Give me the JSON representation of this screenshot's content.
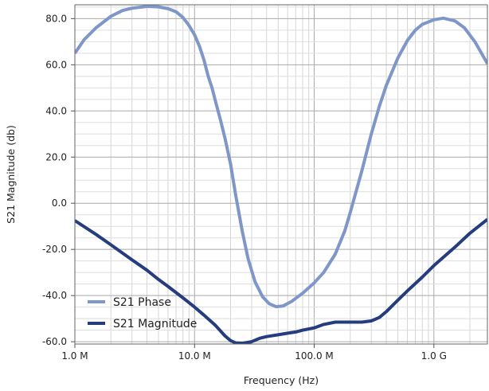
{
  "chart_data": {
    "type": "line",
    "title": "",
    "xlabel": "Frequency (Hz)",
    "ylabel": "S21 Magnitude (db)",
    "x_scale": "log",
    "xlim": [
      1000000,
      2800000000
    ],
    "ylim": [
      -61,
      86
    ],
    "grid": true,
    "legend_position": "bottom-left",
    "x_ticks": [
      {
        "value": 1000000,
        "label": "1.0 M"
      },
      {
        "value": 10000000,
        "label": "10.0 M"
      },
      {
        "value": 100000000,
        "label": "100.0 M"
      },
      {
        "value": 1000000000,
        "label": "1.0 G"
      }
    ],
    "y_ticks": [
      {
        "value": 80,
        "label": "80.0"
      },
      {
        "value": 60,
        "label": "60.0"
      },
      {
        "value": 40,
        "label": "40.0"
      },
      {
        "value": 20,
        "label": "20.0"
      },
      {
        "value": 0,
        "label": "0.0"
      },
      {
        "value": -20,
        "label": "-20.0"
      },
      {
        "value": -40,
        "label": "-40.0"
      },
      {
        "value": -60,
        "label": "-60.0"
      }
    ],
    "series": [
      {
        "name": "S21 Phase",
        "color": "#7f97c8",
        "points": [
          [
            1000000,
            65
          ],
          [
            1200000,
            71
          ],
          [
            1500000,
            76
          ],
          [
            2000000,
            81
          ],
          [
            2500000,
            83.5
          ],
          [
            3000000,
            84.5
          ],
          [
            4000000,
            85.3
          ],
          [
            5000000,
            85.1
          ],
          [
            6000000,
            84.3
          ],
          [
            7000000,
            83
          ],
          [
            8000000,
            80.5
          ],
          [
            9000000,
            77
          ],
          [
            10000000,
            73
          ],
          [
            11000000,
            68
          ],
          [
            12000000,
            62
          ],
          [
            13000000,
            55
          ],
          [
            14000000,
            50
          ],
          [
            15000000,
            44
          ],
          [
            16500000,
            36
          ],
          [
            18000000,
            28
          ],
          [
            20000000,
            17
          ],
          [
            22000000,
            4
          ],
          [
            25000000,
            -12
          ],
          [
            28000000,
            -24
          ],
          [
            32000000,
            -34
          ],
          [
            37000000,
            -40.5
          ],
          [
            42000000,
            -43.5
          ],
          [
            48000000,
            -44.8
          ],
          [
            55000000,
            -44.5
          ],
          [
            65000000,
            -42.5
          ],
          [
            80000000,
            -39
          ],
          [
            100000000,
            -34.5
          ],
          [
            120000000,
            -30
          ],
          [
            150000000,
            -22
          ],
          [
            180000000,
            -12
          ],
          [
            200000000,
            -4
          ],
          [
            250000000,
            14
          ],
          [
            300000000,
            30
          ],
          [
            350000000,
            42
          ],
          [
            400000000,
            51
          ],
          [
            500000000,
            63
          ],
          [
            600000000,
            70.5
          ],
          [
            700000000,
            75
          ],
          [
            800000000,
            77.5
          ],
          [
            1000000000,
            79.5
          ],
          [
            1200000000,
            80.2
          ],
          [
            1500000000,
            79
          ],
          [
            1800000000,
            76
          ],
          [
            2200000000,
            70
          ],
          [
            2500000000,
            65
          ],
          [
            2800000000,
            60.5
          ]
        ]
      },
      {
        "name": "S21 Magnitude",
        "color": "#253d7e",
        "points": [
          [
            1000000,
            -7.5
          ],
          [
            1500000,
            -13.5
          ],
          [
            2000000,
            -18
          ],
          [
            3000000,
            -24.5
          ],
          [
            4000000,
            -29
          ],
          [
            5000000,
            -33
          ],
          [
            6000000,
            -36
          ],
          [
            8000000,
            -41
          ],
          [
            10000000,
            -45
          ],
          [
            12000000,
            -48.5
          ],
          [
            15000000,
            -53
          ],
          [
            18000000,
            -57.5
          ],
          [
            20000000,
            -59.5
          ],
          [
            22000000,
            -60.5
          ],
          [
            25000000,
            -60.7
          ],
          [
            30000000,
            -60
          ],
          [
            35000000,
            -58.5
          ],
          [
            40000000,
            -57.8
          ],
          [
            50000000,
            -57
          ],
          [
            60000000,
            -56.3
          ],
          [
            70000000,
            -55.8
          ],
          [
            80000000,
            -55
          ],
          [
            100000000,
            -54
          ],
          [
            120000000,
            -52.5
          ],
          [
            150000000,
            -51.5
          ],
          [
            200000000,
            -51.5
          ],
          [
            250000000,
            -51.5
          ],
          [
            300000000,
            -51
          ],
          [
            350000000,
            -49.5
          ],
          [
            400000000,
            -47
          ],
          [
            500000000,
            -42
          ],
          [
            600000000,
            -38
          ],
          [
            800000000,
            -32
          ],
          [
            1000000000,
            -27
          ],
          [
            1500000000,
            -19
          ],
          [
            2000000000,
            -13
          ],
          [
            2500000000,
            -9
          ],
          [
            2800000000,
            -7
          ]
        ]
      }
    ]
  }
}
